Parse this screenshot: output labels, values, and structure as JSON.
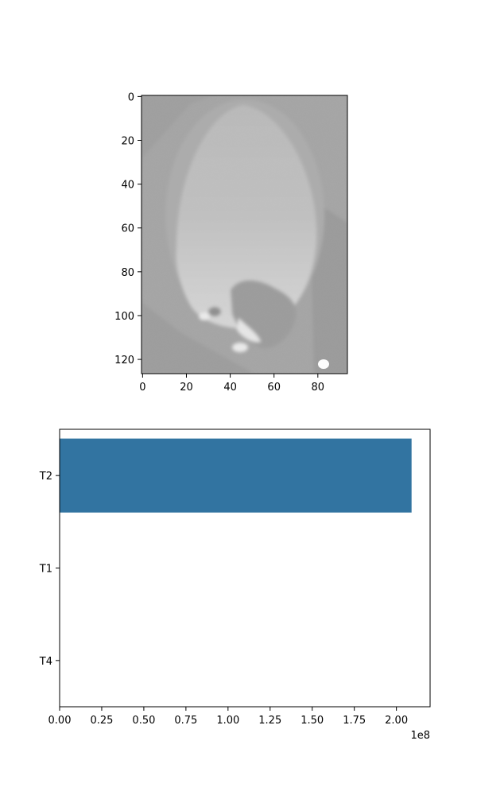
{
  "chart_data": [
    {
      "type": "image",
      "x_ticks": [
        0,
        20,
        40,
        60,
        80
      ],
      "y_ticks": [
        0,
        20,
        40,
        60,
        80,
        100,
        120
      ],
      "xlim": [
        -0.5,
        93.5
      ],
      "ylim": [
        126.5,
        -0.5
      ],
      "grid": false
    },
    {
      "type": "bar",
      "orientation": "horizontal",
      "categories": [
        "T2",
        "T1",
        "T4"
      ],
      "values": [
        209000000,
        0,
        0
      ],
      "color": "#3274a1",
      "xlim": [
        0,
        220000000
      ],
      "x_ticks": [
        0,
        25000000,
        50000000,
        75000000,
        100000000,
        125000000,
        150000000,
        175000000,
        200000000
      ],
      "x_tick_labels": [
        "0.00",
        "0.25",
        "0.50",
        "0.75",
        "1.00",
        "1.25",
        "1.50",
        "1.75",
        "2.00"
      ],
      "offset_label": "1e8",
      "grid": false
    }
  ]
}
